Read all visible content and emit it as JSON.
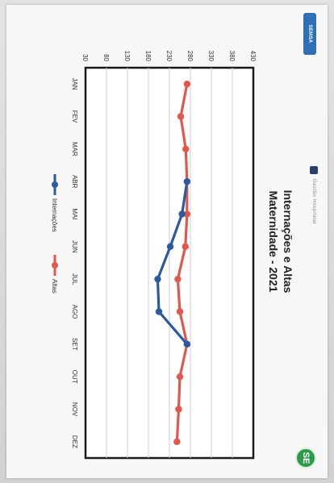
{
  "slide": {
    "header_text": "Gestão Hospitalar",
    "logo_right_text": "SEMSA",
    "logo_left_text": "SE",
    "title_line1": "Internações e Altas",
    "title_line2": "Maternidade - 2021"
  },
  "colors": {
    "internacoes": "#2c5aa0",
    "altas": "#e2574c",
    "plot_border": "#1a1a1a",
    "grid": "#cfcfcf"
  },
  "chart_data": {
    "type": "line",
    "title": "Internações e Altas Maternidade - 2021",
    "categories": [
      "JAN",
      "FEV",
      "MAR",
      "ABR",
      "MAI",
      "JUN",
      "JUL",
      "AGO",
      "SET",
      "OUT",
      "NOV",
      "DEZ"
    ],
    "series": [
      {
        "name": "Internações",
        "values": [
          null,
          null,
          null,
          272,
          260,
          232,
          202,
          205,
          272,
          null,
          null,
          null
        ]
      },
      {
        "name": "Altas",
        "values": [
          272,
          257,
          269,
          272,
          272,
          268,
          250,
          255,
          272,
          255,
          252,
          248
        ]
      }
    ],
    "ylim": [
      30,
      430
    ],
    "yticks": [
      30,
      80,
      130,
      180,
      230,
      280,
      330,
      380,
      430
    ],
    "xlabel": "",
    "ylabel": "",
    "grid": true,
    "legend_position": "bottom"
  }
}
